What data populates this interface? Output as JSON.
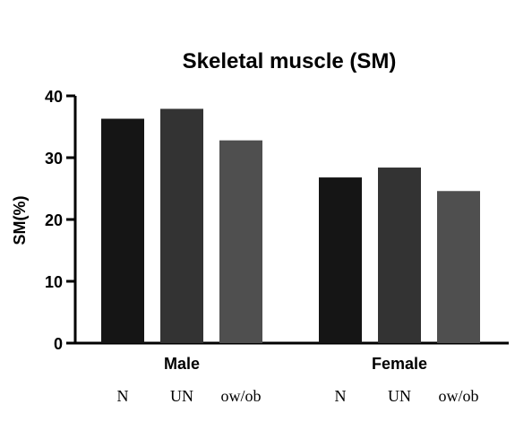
{
  "chart_data": {
    "type": "bar",
    "title": "Skeletal muscle (SM)",
    "ylabel": "SM(%)",
    "xlabel": "",
    "ylim": [
      0,
      40
    ],
    "yticks": [
      "0",
      "10",
      "20",
      "30",
      "40"
    ],
    "groups": [
      "Male",
      "Female"
    ],
    "categories": [
      "N",
      "UN",
      "ow/ob"
    ],
    "colors": [
      "#151515",
      "#333333",
      "#4f4f4f"
    ],
    "series": [
      {
        "group": "Male",
        "values": [
          36.3,
          37.9,
          32.8
        ]
      },
      {
        "group": "Female",
        "values": [
          26.8,
          28.4,
          24.6
        ]
      }
    ],
    "grid": false,
    "legend": "none"
  }
}
